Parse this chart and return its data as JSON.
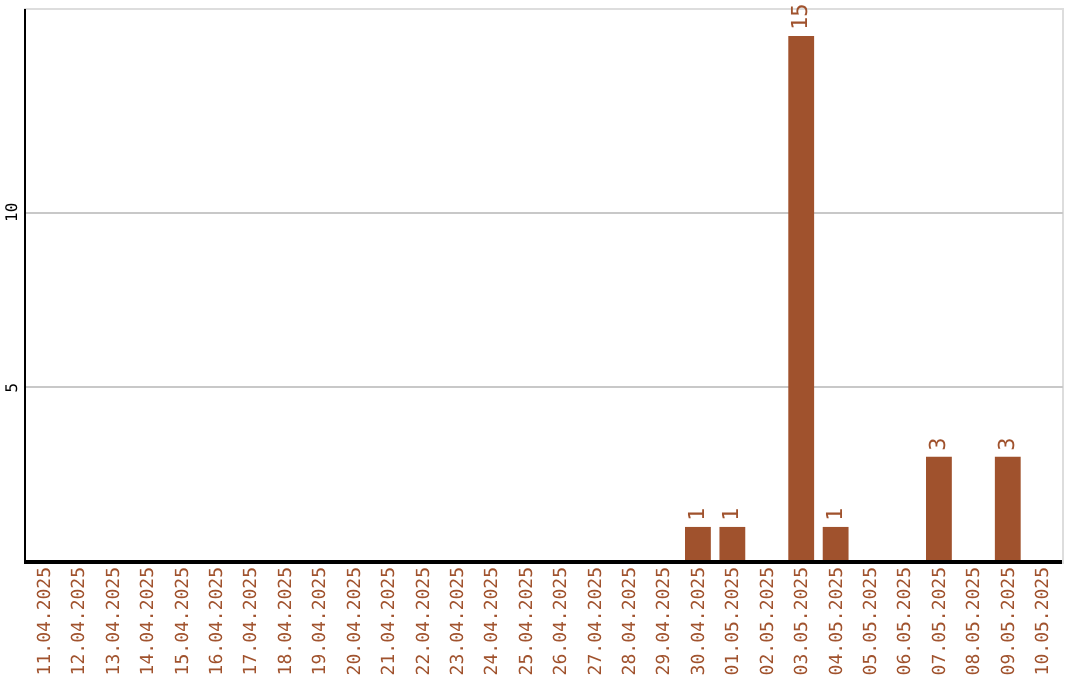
{
  "chart_data": {
    "type": "bar",
    "categories": [
      "11.04.2025",
      "12.04.2025",
      "13.04.2025",
      "14.04.2025",
      "15.04.2025",
      "16.04.2025",
      "17.04.2025",
      "18.04.2025",
      "19.04.2025",
      "20.04.2025",
      "21.04.2025",
      "22.04.2025",
      "23.04.2025",
      "24.04.2025",
      "25.04.2025",
      "26.04.2025",
      "27.04.2025",
      "28.04.2025",
      "29.04.2025",
      "30.04.2025",
      "01.05.2025",
      "02.05.2025",
      "03.05.2025",
      "04.05.2025",
      "05.05.2025",
      "06.05.2025",
      "07.05.2025",
      "08.05.2025",
      "09.05.2025",
      "10.05.2025"
    ],
    "values": [
      0,
      0,
      0,
      0,
      0,
      0,
      0,
      0,
      0,
      0,
      0,
      0,
      0,
      0,
      0,
      0,
      0,
      0,
      0,
      1,
      1,
      0,
      15,
      1,
      0,
      0,
      3,
      0,
      3,
      0
    ],
    "value_labels": [
      null,
      null,
      null,
      null,
      null,
      null,
      null,
      null,
      null,
      null,
      null,
      null,
      null,
      null,
      null,
      null,
      null,
      null,
      null,
      "1",
      "1",
      null,
      "15",
      "1",
      null,
      null,
      "3",
      null,
      "3",
      null
    ],
    "color": "#a0522d",
    "ylim": [
      0,
      15.8
    ],
    "yticks": [
      5,
      10
    ],
    "grid": "y"
  }
}
